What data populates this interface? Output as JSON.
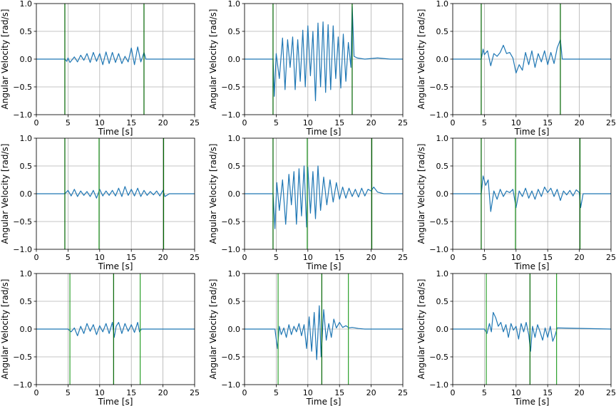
{
  "chart_data": {
    "type": "line",
    "grid": true,
    "common": {
      "xlabel": "Time [s]",
      "ylabel": "Angular Velocity [rad/s]",
      "xlim": [
        0,
        25
      ],
      "ylim": [
        -1.0,
        1.0
      ],
      "xticks": [
        0,
        5,
        10,
        15,
        20,
        25
      ],
      "yticks": [
        -1.0,
        -0.5,
        0.0,
        0.5,
        1.0
      ],
      "ytick_labels": [
        "−1.0",
        "−0.5",
        "0.0",
        "0.5",
        "1.0"
      ],
      "colors": {
        "series": "#1f77b4",
        "event_light": "#2ca02c",
        "event_dark": "#006400"
      }
    },
    "panels": [
      {
        "row": 0,
        "col": 0,
        "events": [
          {
            "t": 4.5,
            "kind": "dark"
          },
          {
            "t": 17.0,
            "kind": "dark"
          }
        ],
        "x": [
          0,
          4.5,
          4.8,
          5.0,
          5.3,
          6.0,
          6.5,
          7.0,
          7.5,
          8.0,
          8.5,
          9.0,
          9.5,
          10.0,
          10.5,
          11.0,
          11.5,
          12.0,
          12.5,
          13.0,
          13.5,
          14.0,
          14.5,
          15.0,
          15.5,
          16.0,
          16.5,
          17.0,
          17.3,
          25
        ],
        "y": [
          0,
          0,
          -0.04,
          0.02,
          -0.06,
          0.04,
          -0.05,
          0.07,
          -0.02,
          0.1,
          -0.06,
          0.12,
          -0.04,
          0.1,
          -0.1,
          0.13,
          -0.08,
          0.12,
          -0.06,
          0.1,
          -0.08,
          0.05,
          -0.05,
          0.2,
          -0.1,
          0.22,
          -0.05,
          0.12,
          0,
          0
        ]
      },
      {
        "row": 0,
        "col": 1,
        "events": [
          {
            "t": 4.5,
            "kind": "dark"
          },
          {
            "t": 17.0,
            "kind": "dark"
          }
        ],
        "x": [
          0,
          4.5,
          4.7,
          5.0,
          5.5,
          6.0,
          6.4,
          6.8,
          7.2,
          7.6,
          8.0,
          8.4,
          8.8,
          9.2,
          9.6,
          10.0,
          10.4,
          10.8,
          11.2,
          11.6,
          12.0,
          12.4,
          12.8,
          13.2,
          13.6,
          14.0,
          14.4,
          14.8,
          15.2,
          15.6,
          16.0,
          16.4,
          16.8,
          17.0,
          17.3,
          17.8,
          19.0,
          21.0,
          23.0,
          25
        ],
        "y": [
          0,
          0,
          -0.67,
          0.1,
          -0.35,
          0.38,
          -0.55,
          0.35,
          -0.15,
          0.4,
          -0.55,
          0.35,
          -0.4,
          0.52,
          -0.5,
          0.6,
          -0.3,
          0.5,
          -0.75,
          0.65,
          -0.5,
          0.67,
          -0.6,
          0.62,
          -0.55,
          0.6,
          -0.35,
          0.4,
          -0.52,
          0.45,
          -0.4,
          0.3,
          -0.15,
          0.95,
          0.05,
          0.02,
          0,
          0.02,
          0,
          0
        ]
      },
      {
        "row": 0,
        "col": 2,
        "events": [
          {
            "t": 4.5,
            "kind": "dark"
          },
          {
            "t": 17.0,
            "kind": "dark"
          }
        ],
        "x": [
          0,
          4.5,
          4.8,
          5.0,
          5.5,
          6.0,
          6.5,
          7.0,
          7.5,
          8.0,
          8.5,
          9.0,
          9.5,
          10.0,
          10.5,
          11.0,
          11.5,
          12.0,
          12.5,
          13.0,
          13.5,
          14.0,
          14.5,
          15.0,
          15.5,
          16.0,
          16.5,
          17.0,
          17.3,
          25
        ],
        "y": [
          0,
          0,
          0.18,
          0.08,
          0.15,
          -0.12,
          0.1,
          0.05,
          0.12,
          0.25,
          0.1,
          0.12,
          0.02,
          -0.25,
          -0.1,
          -0.2,
          0.12,
          -0.1,
          0.15,
          -0.15,
          0.1,
          -0.05,
          0.15,
          -0.1,
          0.12,
          -0.08,
          0.2,
          0.35,
          0,
          0
        ]
      },
      {
        "row": 1,
        "col": 0,
        "events": [
          {
            "t": 4.5,
            "kind": "dark"
          },
          {
            "t": 9.9,
            "kind": "light"
          },
          {
            "t": 20.1,
            "kind": "dark"
          }
        ],
        "x": [
          0,
          4.5,
          5.0,
          5.5,
          6.0,
          6.5,
          7.0,
          7.5,
          8.0,
          8.5,
          9.0,
          9.5,
          10.0,
          10.5,
          11.0,
          11.5,
          12.0,
          12.5,
          13.0,
          13.5,
          14.0,
          14.5,
          15.0,
          15.5,
          16.0,
          16.5,
          17.0,
          17.5,
          18.0,
          18.5,
          19.0,
          19.5,
          20.0,
          20.3,
          21.0,
          25
        ],
        "y": [
          0,
          0,
          0.06,
          -0.04,
          0.08,
          -0.05,
          0.05,
          -0.03,
          0.04,
          -0.05,
          0.06,
          -0.08,
          0.08,
          -0.04,
          0.05,
          -0.03,
          0.06,
          -0.04,
          0.1,
          -0.05,
          0.13,
          -0.03,
          0.08,
          -0.04,
          0.1,
          -0.05,
          0.06,
          -0.03,
          0.04,
          -0.02,
          0.05,
          -0.04,
          0.06,
          -0.05,
          0,
          0
        ]
      },
      {
        "row": 1,
        "col": 1,
        "events": [
          {
            "t": 4.5,
            "kind": "dark"
          },
          {
            "t": 9.9,
            "kind": "light"
          },
          {
            "t": 20.1,
            "kind": "dark"
          }
        ],
        "x": [
          0,
          4.5,
          4.8,
          5.1,
          5.5,
          6.0,
          6.5,
          7.0,
          7.4,
          7.8,
          8.2,
          8.6,
          9.0,
          9.4,
          9.8,
          10.0,
          10.4,
          10.8,
          11.2,
          11.6,
          12.0,
          12.5,
          13.0,
          13.5,
          14.0,
          14.5,
          15.0,
          15.5,
          16.0,
          16.5,
          17.0,
          17.5,
          18.0,
          18.5,
          19.0,
          19.5,
          20.0,
          20.4,
          21.0,
          22.0,
          25
        ],
        "y": [
          0,
          0,
          -0.63,
          0.2,
          -0.3,
          0.25,
          -0.55,
          0.35,
          -0.2,
          0.4,
          -0.55,
          0.45,
          -0.4,
          0.5,
          -0.6,
          0.48,
          -0.35,
          0.4,
          -0.45,
          0.5,
          -0.3,
          0.3,
          -0.2,
          0.25,
          -0.15,
          0.2,
          -0.1,
          0.12,
          -0.08,
          0.1,
          -0.05,
          0.08,
          -0.06,
          0.1,
          -0.04,
          0.08,
          0.05,
          0.12,
          0.03,
          0,
          0
        ]
      },
      {
        "row": 1,
        "col": 2,
        "events": [
          {
            "t": 4.5,
            "kind": "dark"
          },
          {
            "t": 9.9,
            "kind": "light"
          },
          {
            "t": 20.1,
            "kind": "dark"
          }
        ],
        "x": [
          0,
          4.5,
          4.8,
          5.2,
          5.6,
          6.0,
          6.5,
          7.0,
          7.5,
          8.0,
          8.5,
          9.0,
          9.5,
          10.0,
          10.5,
          11.0,
          11.5,
          12.0,
          12.5,
          13.0,
          13.5,
          14.0,
          14.5,
          15.0,
          15.5,
          16.0,
          16.5,
          17.0,
          17.5,
          18.0,
          18.5,
          19.0,
          19.5,
          20.0,
          20.2,
          20.6,
          25
        ],
        "y": [
          0,
          0,
          0.32,
          0.15,
          0.25,
          -0.32,
          0.05,
          -0.1,
          0.08,
          -0.05,
          0.05,
          0.02,
          0.08,
          -0.25,
          0.05,
          -0.05,
          0.1,
          -0.08,
          0.05,
          -0.1,
          0.08,
          -0.05,
          0.12,
          0.02,
          0.1,
          -0.05,
          0.08,
          -0.12,
          0.05,
          -0.02,
          0.06,
          -0.04,
          0.07,
          0.02,
          -0.25,
          0,
          0
        ]
      },
      {
        "row": 2,
        "col": 0,
        "events": [
          {
            "t": 5.3,
            "kind": "light"
          },
          {
            "t": 12.2,
            "kind": "dark"
          },
          {
            "t": 16.4,
            "kind": "light"
          }
        ],
        "x": [
          0,
          5.0,
          5.5,
          6.0,
          6.5,
          7.0,
          7.5,
          8.0,
          8.5,
          9.0,
          9.5,
          10.0,
          10.5,
          11.0,
          11.5,
          12.0,
          12.3,
          12.6,
          13.0,
          13.5,
          14.0,
          14.5,
          15.0,
          15.5,
          16.0,
          16.3,
          16.6,
          25
        ],
        "y": [
          0,
          0,
          -0.05,
          0.02,
          -0.12,
          0.05,
          -0.08,
          0.1,
          -0.04,
          0.08,
          -0.1,
          0.06,
          -0.05,
          0.1,
          -0.08,
          0.12,
          -0.15,
          0.05,
          0.12,
          -0.08,
          0.1,
          -0.04,
          0.08,
          -0.06,
          0.12,
          -0.05,
          0,
          0
        ]
      },
      {
        "row": 2,
        "col": 1,
        "events": [
          {
            "t": 5.3,
            "kind": "light"
          },
          {
            "t": 12.2,
            "kind": "dark"
          },
          {
            "t": 16.4,
            "kind": "light"
          }
        ],
        "x": [
          0,
          4.8,
          5.2,
          5.5,
          5.8,
          6.2,
          6.6,
          7.0,
          7.4,
          7.8,
          8.2,
          8.6,
          9.0,
          9.4,
          9.8,
          10.2,
          10.6,
          11.0,
          11.4,
          11.8,
          12.1,
          12.5,
          12.9,
          13.3,
          13.7,
          14.1,
          14.5,
          15.0,
          15.5,
          16.0,
          16.5,
          17.0,
          18.0,
          19.0,
          25
        ],
        "y": [
          0,
          0,
          -0.35,
          0.05,
          -0.1,
          0.02,
          -0.15,
          0.08,
          -0.1,
          0.05,
          -0.05,
          0.1,
          -0.12,
          0.08,
          -0.35,
          0.22,
          -0.4,
          0.3,
          -0.55,
          0.42,
          -0.5,
          0.35,
          -0.2,
          0.1,
          -0.15,
          0.18,
          0.02,
          0.12,
          0.03,
          0.06,
          0.02,
          0.03,
          0.01,
          0,
          0
        ]
      },
      {
        "row": 2,
        "col": 2,
        "events": [
          {
            "t": 5.3,
            "kind": "light"
          },
          {
            "t": 12.2,
            "kind": "dark"
          },
          {
            "t": 16.4,
            "kind": "light"
          }
        ],
        "x": [
          0,
          5.0,
          5.4,
          5.8,
          6.1,
          6.4,
          6.8,
          7.2,
          7.6,
          8.0,
          8.4,
          8.8,
          9.2,
          9.6,
          10.0,
          10.4,
          10.8,
          11.2,
          11.6,
          12.0,
          12.3,
          12.6,
          13.0,
          13.4,
          13.8,
          14.2,
          14.6,
          15.0,
          15.4,
          15.8,
          16.2,
          16.5,
          25
        ],
        "y": [
          0,
          0,
          -0.08,
          0.1,
          -0.05,
          0.3,
          0.2,
          0.05,
          0.12,
          -0.05,
          0.08,
          -0.15,
          0.1,
          -0.02,
          0.05,
          -0.18,
          0.1,
          -0.05,
          0.12,
          -0.1,
          -0.4,
          0.05,
          -0.15,
          0.08,
          -0.05,
          -0.2,
          0.02,
          -0.15,
          0.05,
          -0.22,
          -0.1,
          0.02,
          0
        ]
      }
    ]
  }
}
